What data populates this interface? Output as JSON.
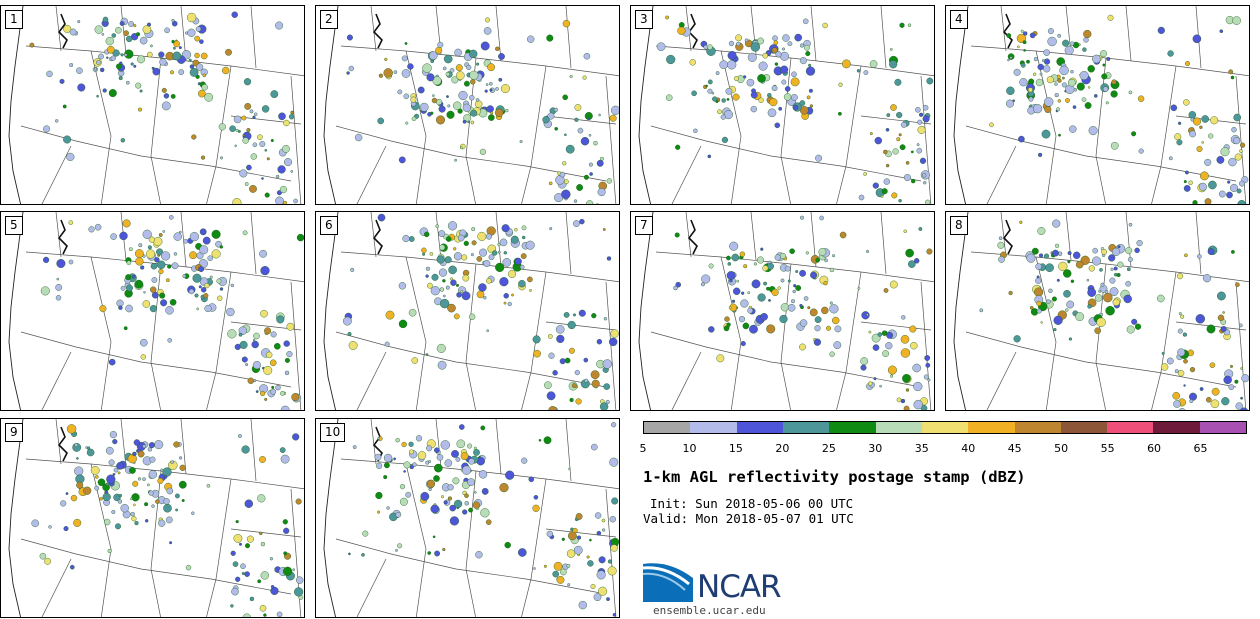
{
  "panels": [
    "1",
    "2",
    "3",
    "4",
    "5",
    "6",
    "7",
    "8",
    "9",
    "10"
  ],
  "colorbar": {
    "colors": [
      "#a6a6a6",
      "#b2bbe9",
      "#4f55d8",
      "#4d9699",
      "#0f8a12",
      "#b9dcb8",
      "#efe071",
      "#f0b125",
      "#bd862f",
      "#8d5639",
      "#ee5079",
      "#6d1a3b",
      "#a851b2"
    ],
    "ticks": [
      "5",
      "10",
      "15",
      "20",
      "25",
      "30",
      "35",
      "40",
      "45",
      "50",
      "55",
      "60",
      "65"
    ]
  },
  "title": "1-km AGL reflectivity postage stamp (dBZ)",
  "init": "Init: Sun 2018-05-06 00 UTC",
  "valid": "Valid: Mon 2018-05-07 01 UTC",
  "logo": {
    "name": "NCAR",
    "url": "ensemble.ucar.edu"
  }
}
